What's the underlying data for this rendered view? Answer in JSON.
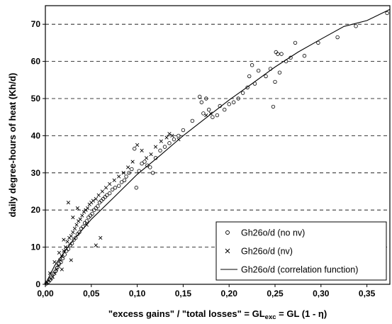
{
  "chart_data": {
    "type": "scatter",
    "title": "",
    "xlabel": "\"excess gains\" / \"total losses\" = GLexc = GL (1 - η)",
    "xlabel_parts": {
      "main": "\"excess gains\" / \"total losses\" = GL",
      "sub": "exc",
      "tail": " = GL (1 - η)"
    },
    "ylabel": "daily degree-hours of heat (Kh/d)",
    "xlim": [
      0,
      0.375
    ],
    "ylim": [
      0,
      75
    ],
    "x_ticks": [
      0.0,
      0.05,
      0.1,
      0.15,
      0.2,
      0.25,
      0.3,
      0.35
    ],
    "x_tick_labels": [
      "0,00",
      "0,05",
      "0,10",
      "0,15",
      "0,20",
      "0,25",
      "0,30",
      "0,35"
    ],
    "y_ticks": [
      0,
      10,
      20,
      30,
      40,
      50,
      60,
      70
    ],
    "y_tick_labels": [
      "0",
      "10",
      "20",
      "30",
      "40",
      "50",
      "60",
      "70"
    ],
    "grid": "horizontal dashed",
    "legend_position": "bottom-right",
    "series": [
      {
        "name": "Gh26o/d (no nv)",
        "marker": "circle",
        "points": [
          [
            0.001,
            0.2
          ],
          [
            0.003,
            0.6
          ],
          [
            0.005,
            1.2
          ],
          [
            0.007,
            1.8
          ],
          [
            0.009,
            2.8
          ],
          [
            0.011,
            3.5
          ],
          [
            0.013,
            4.5
          ],
          [
            0.015,
            5.5
          ],
          [
            0.017,
            6.0
          ],
          [
            0.019,
            7.0
          ],
          [
            0.021,
            8.0
          ],
          [
            0.023,
            9.0
          ],
          [
            0.025,
            9.5
          ],
          [
            0.027,
            10.5
          ],
          [
            0.029,
            11.0
          ],
          [
            0.031,
            12.0
          ],
          [
            0.033,
            12.5
          ],
          [
            0.035,
            13.5
          ],
          [
            0.037,
            14.0
          ],
          [
            0.039,
            15.0
          ],
          [
            0.041,
            15.5
          ],
          [
            0.043,
            16.5
          ],
          [
            0.045,
            17.0
          ],
          [
            0.047,
            18.0
          ],
          [
            0.049,
            18.5
          ],
          [
            0.051,
            19.0
          ],
          [
            0.053,
            20.0
          ],
          [
            0.055,
            20.5
          ],
          [
            0.057,
            21.0
          ],
          [
            0.059,
            22.0
          ],
          [
            0.061,
            22.5
          ],
          [
            0.063,
            23.0
          ],
          [
            0.065,
            23.5
          ],
          [
            0.067,
            24.0
          ],
          [
            0.07,
            24.5
          ],
          [
            0.073,
            25.5
          ],
          [
            0.076,
            26.0
          ],
          [
            0.08,
            26.5
          ],
          [
            0.083,
            27.5
          ],
          [
            0.086,
            28.0
          ],
          [
            0.088,
            29.0
          ],
          [
            0.091,
            30.0
          ],
          [
            0.094,
            31.0
          ],
          [
            0.097,
            36.5
          ],
          [
            0.099,
            26.0
          ],
          [
            0.102,
            30.5
          ],
          [
            0.105,
            32.5
          ],
          [
            0.108,
            33.0
          ],
          [
            0.111,
            32.0
          ],
          [
            0.114,
            31.5
          ],
          [
            0.117,
            30.0
          ],
          [
            0.12,
            34.0
          ],
          [
            0.125,
            36.0
          ],
          [
            0.13,
            37.0
          ],
          [
            0.135,
            38.0
          ],
          [
            0.14,
            39.0
          ],
          [
            0.145,
            40.0
          ],
          [
            0.15,
            41.5
          ],
          [
            0.16,
            44.0
          ],
          [
            0.168,
            50.5
          ],
          [
            0.17,
            49.0
          ],
          [
            0.172,
            46.0
          ],
          [
            0.175,
            50.0
          ],
          [
            0.178,
            47.0
          ],
          [
            0.182,
            45.0
          ],
          [
            0.187,
            45.5
          ],
          [
            0.19,
            48.0
          ],
          [
            0.195,
            47.0
          ],
          [
            0.2,
            48.5
          ],
          [
            0.205,
            49.0
          ],
          [
            0.21,
            50.0
          ],
          [
            0.215,
            51.5
          ],
          [
            0.22,
            53.0
          ],
          [
            0.222,
            56.0
          ],
          [
            0.225,
            59.0
          ],
          [
            0.228,
            54.0
          ],
          [
            0.232,
            57.5
          ],
          [
            0.24,
            56.0
          ],
          [
            0.245,
            58.0
          ],
          [
            0.248,
            47.8
          ],
          [
            0.25,
            54.5
          ],
          [
            0.251,
            62.5
          ],
          [
            0.253,
            62.0
          ],
          [
            0.255,
            57.0
          ],
          [
            0.257,
            62.0
          ],
          [
            0.262,
            60.0
          ],
          [
            0.267,
            61.0
          ],
          [
            0.272,
            65.0
          ],
          [
            0.282,
            61.5
          ],
          [
            0.297,
            65.0
          ],
          [
            0.318,
            66.5
          ],
          [
            0.338,
            69.5
          ],
          [
            0.372,
            73.0
          ]
        ]
      },
      {
        "name": "Gh26o/d (nv)",
        "marker": "x",
        "points": [
          [
            0.002,
            0.5
          ],
          [
            0.004,
            1.0
          ],
          [
            0.006,
            1.5
          ],
          [
            0.008,
            2.0
          ],
          [
            0.01,
            3.0
          ],
          [
            0.012,
            4.0
          ],
          [
            0.014,
            5.0
          ],
          [
            0.016,
            6.5
          ],
          [
            0.018,
            7.5
          ],
          [
            0.02,
            9.0
          ],
          [
            0.022,
            10.0
          ],
          [
            0.024,
            11.5
          ],
          [
            0.026,
            12.5
          ],
          [
            0.028,
            13.0
          ],
          [
            0.03,
            14.0
          ],
          [
            0.032,
            15.0
          ],
          [
            0.034,
            16.0
          ],
          [
            0.036,
            17.0
          ],
          [
            0.038,
            17.5
          ],
          [
            0.04,
            18.5
          ],
          [
            0.042,
            19.5
          ],
          [
            0.044,
            20.0
          ],
          [
            0.046,
            20.5
          ],
          [
            0.048,
            21.5
          ],
          [
            0.05,
            22.0
          ],
          [
            0.052,
            22.5
          ],
          [
            0.055,
            23.0
          ],
          [
            0.058,
            24.0
          ],
          [
            0.062,
            25.0
          ],
          [
            0.066,
            26.0
          ],
          [
            0.07,
            27.0
          ],
          [
            0.075,
            28.0
          ],
          [
            0.08,
            29.0
          ],
          [
            0.085,
            30.0
          ],
          [
            0.09,
            31.5
          ],
          [
            0.095,
            33.0
          ],
          [
            0.1,
            37.5
          ],
          [
            0.105,
            36.0
          ],
          [
            0.11,
            34.0
          ],
          [
            0.115,
            35.0
          ],
          [
            0.12,
            37.0
          ],
          [
            0.126,
            38.5
          ],
          [
            0.132,
            39.5
          ],
          [
            0.135,
            40.5
          ],
          [
            0.138,
            40.0
          ],
          [
            0.145,
            39.0
          ],
          [
            0.175,
            45.5
          ],
          [
            0.18,
            46.0
          ],
          [
            0.025,
            22.0
          ],
          [
            0.03,
            18.0
          ],
          [
            0.035,
            20.5
          ],
          [
            0.045,
            16.0
          ],
          [
            0.055,
            10.5
          ],
          [
            0.06,
            12.5
          ],
          [
            0.02,
            12.0
          ],
          [
            0.015,
            8.5
          ],
          [
            0.01,
            6.0
          ],
          [
            0.005,
            3.0
          ],
          [
            0.018,
            4.0
          ],
          [
            0.028,
            6.5
          ]
        ]
      },
      {
        "name": "Gh26o/d (correlation function)",
        "marker": "line",
        "points": [
          [
            0.0,
            0.0
          ],
          [
            0.01,
            5.0
          ],
          [
            0.02,
            8.5
          ],
          [
            0.03,
            11.8
          ],
          [
            0.05,
            17.5
          ],
          [
            0.075,
            23.5
          ],
          [
            0.1,
            29.6
          ],
          [
            0.125,
            34.7
          ],
          [
            0.15,
            40.0
          ],
          [
            0.175,
            44.8
          ],
          [
            0.2,
            49.6
          ],
          [
            0.225,
            54.0
          ],
          [
            0.25,
            58.5
          ],
          [
            0.275,
            62.5
          ],
          [
            0.3,
            66.0
          ],
          [
            0.325,
            69.4
          ],
          [
            0.35,
            71.0
          ],
          [
            0.375,
            74.0
          ]
        ]
      }
    ],
    "legend": {
      "items": [
        {
          "label": "Gh26o/d (no nv)",
          "marker": "circle"
        },
        {
          "label": "Gh26o/d (nv)",
          "marker": "x"
        },
        {
          "label": "Gh26o/d (correlation function)",
          "marker": "line"
        }
      ]
    }
  }
}
